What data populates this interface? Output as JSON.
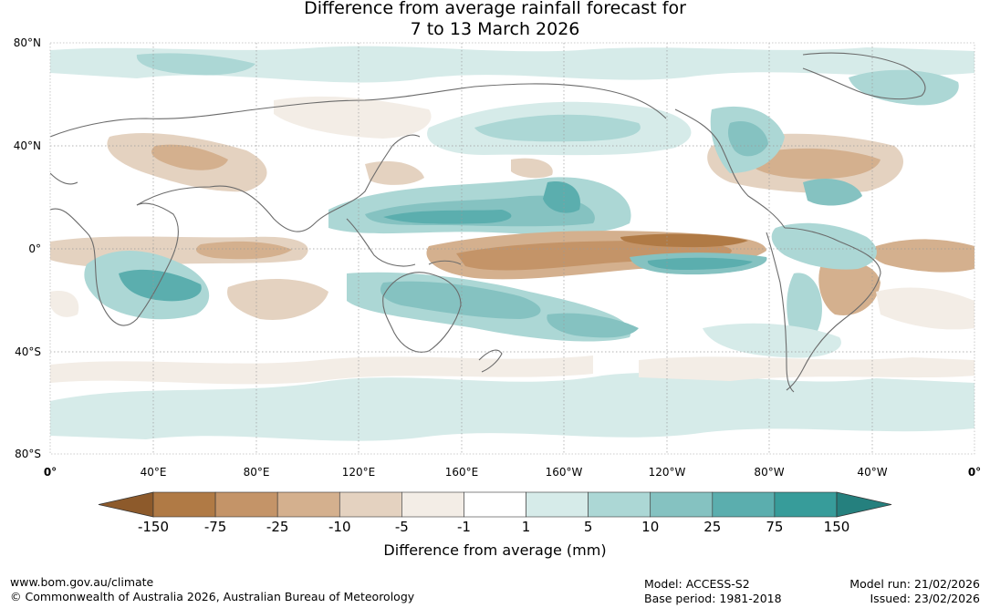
{
  "title": {
    "line1": "Difference from average rainfall forecast for",
    "line2": "7 to 13 March 2026"
  },
  "lat_labels": [
    "80°N",
    "40°N",
    "0°",
    "40°S",
    "80°S"
  ],
  "lon_labels": [
    "0°",
    "40°E",
    "80°E",
    "120°E",
    "160°E",
    "160°W",
    "120°W",
    "80°W",
    "40°W",
    "0°"
  ],
  "colorbar": {
    "title": "Difference from average (mm)",
    "tick_labels": [
      "-150",
      "-75",
      "-25",
      "-10",
      "-5",
      "-1",
      "1",
      "5",
      "10",
      "25",
      "75",
      "150"
    ],
    "colors": [
      "#8d5a2b",
      "#b07a45",
      "#c49468",
      "#d4b08e",
      "#e4d2c0",
      "#f3ede6",
      "#ffffff",
      "#d6ebe9",
      "#acd7d5",
      "#85c2c1",
      "#5baeae",
      "#379c9a",
      "#25807e"
    ]
  },
  "footer": {
    "url": "www.bom.gov.au/climate",
    "copyright": "© Commonwealth of Australia 2026, Australian Bureau of Meteorology",
    "model": "Model: ACCESS-S2",
    "base_period": "Base period: 1981-2018",
    "model_run": "Model run: 21/02/2026",
    "issued": "Issued: 23/02/2026"
  }
}
